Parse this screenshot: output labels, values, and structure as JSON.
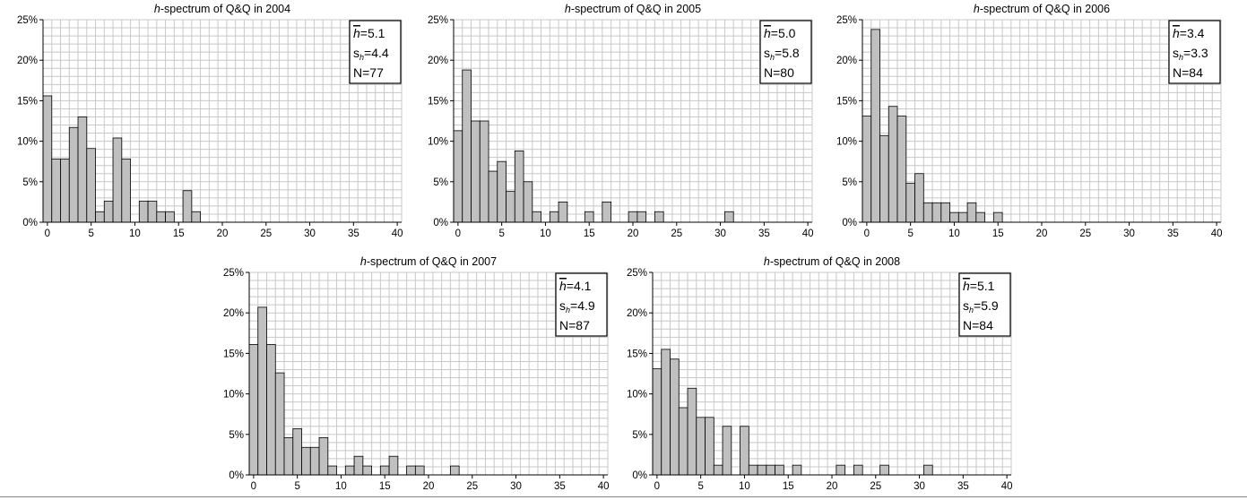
{
  "chart_data": [
    {
      "type": "bar",
      "title_prefix": "h",
      "title_rest": "-spectrum of Q&Q in 2004",
      "x": [
        0,
        1,
        2,
        3,
        4,
        5,
        6,
        7,
        8,
        9,
        10,
        11,
        12,
        13,
        14,
        15,
        16,
        17,
        18,
        19,
        20,
        21,
        22,
        23,
        24,
        25,
        26,
        27,
        28,
        29,
        30,
        31,
        32,
        33,
        34,
        35,
        36,
        37,
        38,
        39,
        40
      ],
      "values": [
        15.6,
        7.8,
        7.8,
        11.7,
        13.0,
        9.1,
        1.3,
        2.6,
        10.4,
        7.8,
        0,
        2.6,
        2.6,
        1.3,
        1.3,
        0,
        3.9,
        1.3,
        0,
        0,
        0,
        0,
        0,
        0,
        0,
        0,
        0,
        0,
        0,
        0,
        0,
        0,
        0,
        0,
        0,
        0,
        0,
        0,
        0,
        0,
        0
      ],
      "ylim": [
        0,
        25
      ],
      "yticks": [
        "0%",
        "5%",
        "10%",
        "15%",
        "20%",
        "25%"
      ],
      "xticks": [
        "0",
        "5",
        "10",
        "15",
        "20",
        "25",
        "30",
        "35",
        "40"
      ],
      "stats": {
        "mean_symbol": "h",
        "mean": "=5.1",
        "sd_prefix": "s",
        "sd_sub": "h",
        "sd": "=4.4",
        "n": "N=77"
      }
    },
    {
      "type": "bar",
      "title_prefix": "h",
      "title_rest": "-spectrum of Q&Q in 2005",
      "x": [
        0,
        1,
        2,
        3,
        4,
        5,
        6,
        7,
        8,
        9,
        10,
        11,
        12,
        13,
        14,
        15,
        16,
        17,
        18,
        19,
        20,
        21,
        22,
        23,
        24,
        25,
        26,
        27,
        28,
        29,
        30,
        31,
        32,
        33,
        34,
        35,
        36,
        37,
        38,
        39,
        40
      ],
      "values": [
        11.3,
        18.8,
        12.5,
        12.5,
        6.3,
        7.5,
        3.8,
        8.8,
        5.0,
        1.3,
        0,
        1.3,
        2.5,
        0,
        0,
        1.3,
        0,
        2.5,
        0,
        0,
        1.3,
        1.3,
        0,
        1.3,
        0,
        0,
        0,
        0,
        0,
        0,
        0,
        1.3,
        0,
        0,
        0,
        0,
        0,
        0,
        0,
        0,
        0
      ],
      "ylim": [
        0,
        25
      ],
      "yticks": [
        "0%",
        "5%",
        "10%",
        "15%",
        "20%",
        "25%"
      ],
      "xticks": [
        "0",
        "5",
        "10",
        "15",
        "20",
        "25",
        "30",
        "35",
        "40"
      ],
      "stats": {
        "mean_symbol": "h",
        "mean": "=5.0",
        "sd_prefix": "s",
        "sd_sub": "h",
        "sd": "=5.8",
        "n": "N=80"
      }
    },
    {
      "type": "bar",
      "title_prefix": "h",
      "title_rest": "-spectrum of Q&Q in 2006",
      "x": [
        0,
        1,
        2,
        3,
        4,
        5,
        6,
        7,
        8,
        9,
        10,
        11,
        12,
        13,
        14,
        15,
        16,
        17,
        18,
        19,
        20,
        21,
        22,
        23,
        24,
        25,
        26,
        27,
        28,
        29,
        30,
        31,
        32,
        33,
        34,
        35,
        36,
        37,
        38,
        39,
        40
      ],
      "values": [
        13.1,
        23.8,
        10.7,
        14.3,
        13.1,
        4.8,
        6.0,
        2.4,
        2.4,
        2.4,
        1.2,
        1.2,
        2.4,
        1.2,
        0,
        1.2,
        0,
        0,
        0,
        0,
        0,
        0,
        0,
        0,
        0,
        0,
        0,
        0,
        0,
        0,
        0,
        0,
        0,
        0,
        0,
        0,
        0,
        0,
        0,
        0,
        0
      ],
      "ylim": [
        0,
        25
      ],
      "yticks": [
        "0%",
        "5%",
        "10%",
        "15%",
        "20%",
        "25%"
      ],
      "xticks": [
        "0",
        "5",
        "10",
        "15",
        "20",
        "25",
        "30",
        "35",
        "40"
      ],
      "stats": {
        "mean_symbol": "h",
        "mean": "=3.4",
        "sd_prefix": "s",
        "sd_sub": "h",
        "sd": "=3.3",
        "n": "N=84"
      }
    },
    {
      "type": "bar",
      "title_prefix": "h",
      "title_rest": "-spectrum of Q&Q in 2007",
      "x": [
        0,
        1,
        2,
        3,
        4,
        5,
        6,
        7,
        8,
        9,
        10,
        11,
        12,
        13,
        14,
        15,
        16,
        17,
        18,
        19,
        20,
        21,
        22,
        23,
        24,
        25,
        26,
        27,
        28,
        29,
        30,
        31,
        32,
        33,
        34,
        35,
        36,
        37,
        38,
        39,
        40
      ],
      "values": [
        16.1,
        20.7,
        16.1,
        12.6,
        4.6,
        5.7,
        3.4,
        3.4,
        4.6,
        1.1,
        0,
        1.1,
        2.3,
        1.1,
        0,
        1.1,
        2.3,
        0,
        1.1,
        1.1,
        0,
        0,
        0,
        1.1,
        0,
        0,
        0,
        0,
        0,
        0,
        0,
        0,
        0,
        0,
        0,
        0,
        0,
        0,
        0,
        0,
        0
      ],
      "ylim": [
        0,
        25
      ],
      "yticks": [
        "0%",
        "5%",
        "10%",
        "15%",
        "20%",
        "25%"
      ],
      "xticks": [
        "0",
        "5",
        "10",
        "15",
        "20",
        "25",
        "30",
        "35",
        "40"
      ],
      "stats": {
        "mean_symbol": "h",
        "mean": "=4.1",
        "sd_prefix": "s",
        "sd_sub": "h",
        "sd": "=4.9",
        "n": "N=87"
      }
    },
    {
      "type": "bar",
      "title_prefix": "h",
      "title_rest": "-spectrum of Q&Q in 2008",
      "x": [
        0,
        1,
        2,
        3,
        4,
        5,
        6,
        7,
        8,
        9,
        10,
        11,
        12,
        13,
        14,
        15,
        16,
        17,
        18,
        19,
        20,
        21,
        22,
        23,
        24,
        25,
        26,
        27,
        28,
        29,
        30,
        31,
        32,
        33,
        34,
        35,
        36,
        37,
        38,
        39,
        40
      ],
      "values": [
        13.1,
        15.5,
        14.3,
        8.3,
        10.7,
        7.1,
        7.1,
        1.2,
        6.0,
        0,
        6.0,
        1.2,
        1.2,
        1.2,
        1.2,
        0,
        1.2,
        0,
        0,
        0,
        0,
        1.2,
        0,
        1.2,
        0,
        0,
        1.2,
        0,
        0,
        0,
        0,
        1.2,
        0,
        0,
        0,
        0,
        0,
        0,
        0,
        0,
        0
      ],
      "ylim": [
        0,
        25
      ],
      "yticks": [
        "0%",
        "5%",
        "10%",
        "15%",
        "20%",
        "25%"
      ],
      "xticks": [
        "0",
        "5",
        "10",
        "15",
        "20",
        "25",
        "30",
        "35",
        "40"
      ],
      "stats": {
        "mean_symbol": "h",
        "mean": "=5.1",
        "sd_prefix": "s",
        "sd_sub": "h",
        "sd": "=5.9",
        "n": "N=84"
      }
    }
  ],
  "colors": {
    "bar_fill": "#c0c0c0",
    "bar_stroke": "#000000",
    "grid": "#c8c8c8",
    "axis": "#000000"
  }
}
